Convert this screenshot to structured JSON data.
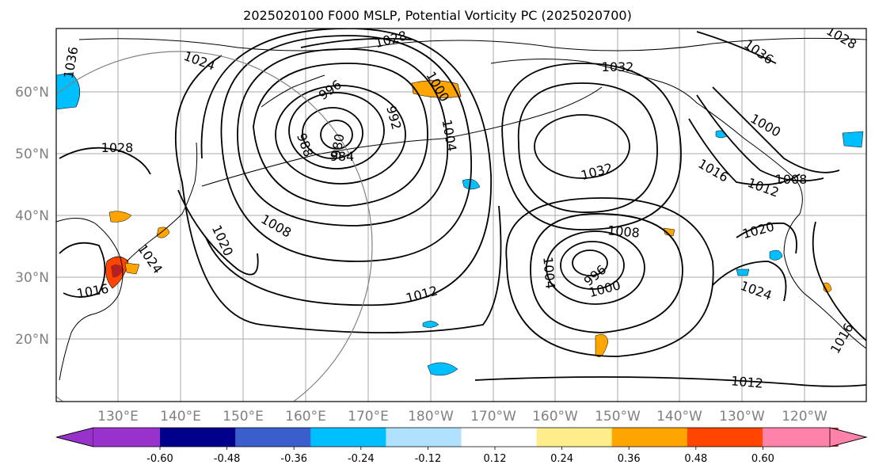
{
  "title": "2025020100 F000 MSLP, Potential Vorticity PC (2025020700)",
  "latitude_labels": [
    "60°N",
    "50°N",
    "40°N",
    "30°N",
    "20°N"
  ],
  "longitude_labels": [
    "130°E",
    "140°E",
    "150°E",
    "160°E",
    "170°E",
    "180°W",
    "170°W",
    "160°W",
    "150°W",
    "140°W",
    "130°W",
    "120°W"
  ],
  "colorbar": {
    "ticks": [
      "-0.60",
      "-0.48",
      "-0.36",
      "-0.24",
      "-0.12",
      "0.12",
      "0.24",
      "0.36",
      "0.48",
      "0.60"
    ],
    "colors": [
      "#9932cc",
      "#00008b",
      "#3a5fcd",
      "#00bfff",
      "#b0e2ff",
      "#ffffff",
      "#ffec8b",
      "#ffa500",
      "#ff4500",
      "#b22222",
      "#ff82ab"
    ]
  },
  "isobar_labels": [
    {
      "text": "1036"
    },
    {
      "text": "1028"
    },
    {
      "text": "1032"
    },
    {
      "text": "1036"
    },
    {
      "text": "1028"
    },
    {
      "text": "1024"
    },
    {
      "text": "1028"
    },
    {
      "text": "996"
    },
    {
      "text": "1000"
    },
    {
      "text": "992"
    },
    {
      "text": "988"
    },
    {
      "text": "980"
    },
    {
      "text": "984"
    },
    {
      "text": "1004"
    },
    {
      "text": "1032"
    },
    {
      "text": "1016"
    },
    {
      "text": "1012"
    },
    {
      "text": "1008"
    },
    {
      "text": "1000"
    },
    {
      "text": "1020"
    },
    {
      "text": "1024"
    },
    {
      "text": "1016"
    },
    {
      "text": "1008"
    },
    {
      "text": "1020"
    },
    {
      "text": "1008"
    },
    {
      "text": "1004"
    },
    {
      "text": "996"
    },
    {
      "text": "1000"
    },
    {
      "text": "1012"
    },
    {
      "text": "1024"
    },
    {
      "text": "1016"
    },
    {
      "text": "1012"
    }
  ]
}
